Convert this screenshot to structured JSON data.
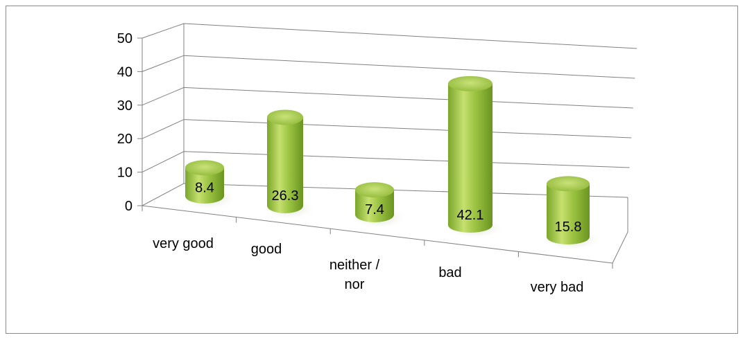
{
  "chart_data": {
    "type": "bar",
    "style": "3d-cylinder",
    "categories": [
      "very good",
      "good",
      "neither / nor",
      "bad",
      "very bad"
    ],
    "values": [
      8.4,
      26.3,
      7.4,
      42.1,
      15.8
    ],
    "value_labels": [
      "8.4",
      "26.3",
      "7.4",
      "42.1",
      "15.8"
    ],
    "title": "",
    "xlabel": "",
    "ylabel": "",
    "ylim": [
      0,
      50
    ],
    "yticks": [
      "0",
      "10",
      "20",
      "30",
      "40",
      "50"
    ],
    "grid": true,
    "legend": "none",
    "colors": {
      "bar_light": "#c6e06f",
      "bar_mid": "#98c13f",
      "bar_dark": "#6e9a24",
      "bar_top": "#b4d65a",
      "gridline": "#808080",
      "border": "#8a8a8a"
    }
  }
}
